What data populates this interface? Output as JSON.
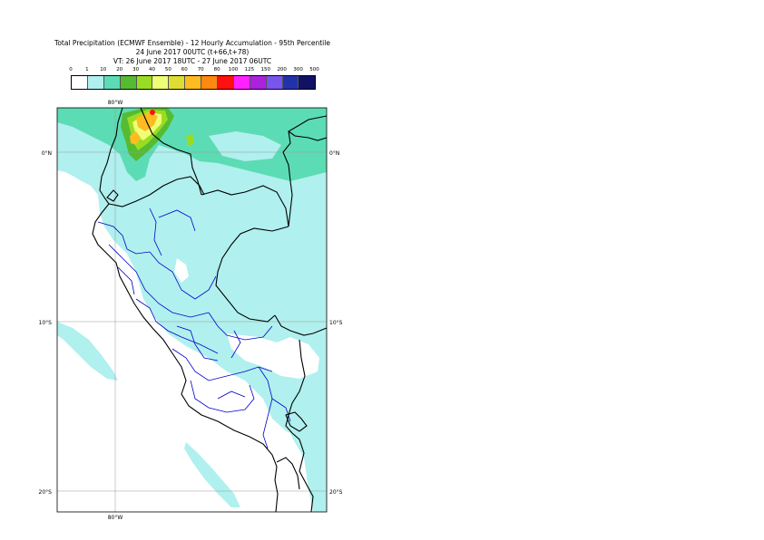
{
  "title": {
    "line1": "Total Precipitation (ECMWF Ensemble) - 12 Hourly Accumulation - 95th Percentile",
    "line2": "24 June 2017 00UTC (t+66,t+78)",
    "line3": "VT: 26 June 2017 18UTC - 27 June 2017 06UTC"
  },
  "legend": {
    "ticks": [
      "0",
      "1",
      "10",
      "20",
      "30",
      "40",
      "50",
      "60",
      "70",
      "80",
      "100",
      "125",
      "150",
      "200",
      "300",
      "500"
    ],
    "colors": [
      "#ffffff",
      "#b0f0ee",
      "#5cdcb4",
      "#55bb33",
      "#99dd22",
      "#eeff77",
      "#dddd33",
      "#ffbb22",
      "#ff8811",
      "#ff1111",
      "#ff22ff",
      "#aa22dd",
      "#7755ee",
      "#2233aa",
      "#111166"
    ]
  },
  "axes": {
    "top_lon": "80°W",
    "bottom_lon": "80°W",
    "lat_0_left": "0°N",
    "lat_0_right": "0°N",
    "lat_10_left": "10°S",
    "lat_10_right": "10°S",
    "lat_20_left": "20°S",
    "lat_20_right": "20°S"
  },
  "palette": {
    "land_border": "#000000",
    "admin_border": "#0000cc",
    "grid": "#999999"
  }
}
